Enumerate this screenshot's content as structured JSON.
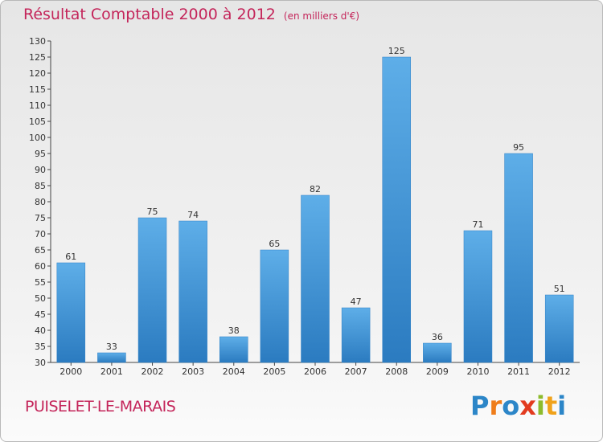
{
  "chart_data": {
    "type": "bar",
    "title": "Résultat Comptable 2000 à 2012",
    "subtitle": "(en milliers d'€)",
    "categories": [
      "2000",
      "2001",
      "2002",
      "2003",
      "2004",
      "2005",
      "2006",
      "2007",
      "2008",
      "2009",
      "2010",
      "2011",
      "2012"
    ],
    "values": [
      61,
      33,
      75,
      74,
      38,
      65,
      82,
      47,
      125,
      36,
      71,
      95,
      51
    ],
    "ylim": [
      30,
      130
    ],
    "ytick_step": 5,
    "xlabel": "",
    "ylabel": "",
    "grid": false,
    "bar_color": "#3d8fd6"
  },
  "commune": "PUISELET-LE-MARAIS",
  "brand": {
    "letters": [
      "P",
      "r",
      "o",
      "x",
      "i",
      "t",
      "i"
    ],
    "colors": [
      "#2c86c8",
      "#ef7d1a",
      "#2c86c8",
      "#e23b1f",
      "#8dbb2c",
      "#f0a21a",
      "#2c86c8"
    ]
  },
  "colors": {
    "title": "#c4255a",
    "axis": "#444444"
  }
}
